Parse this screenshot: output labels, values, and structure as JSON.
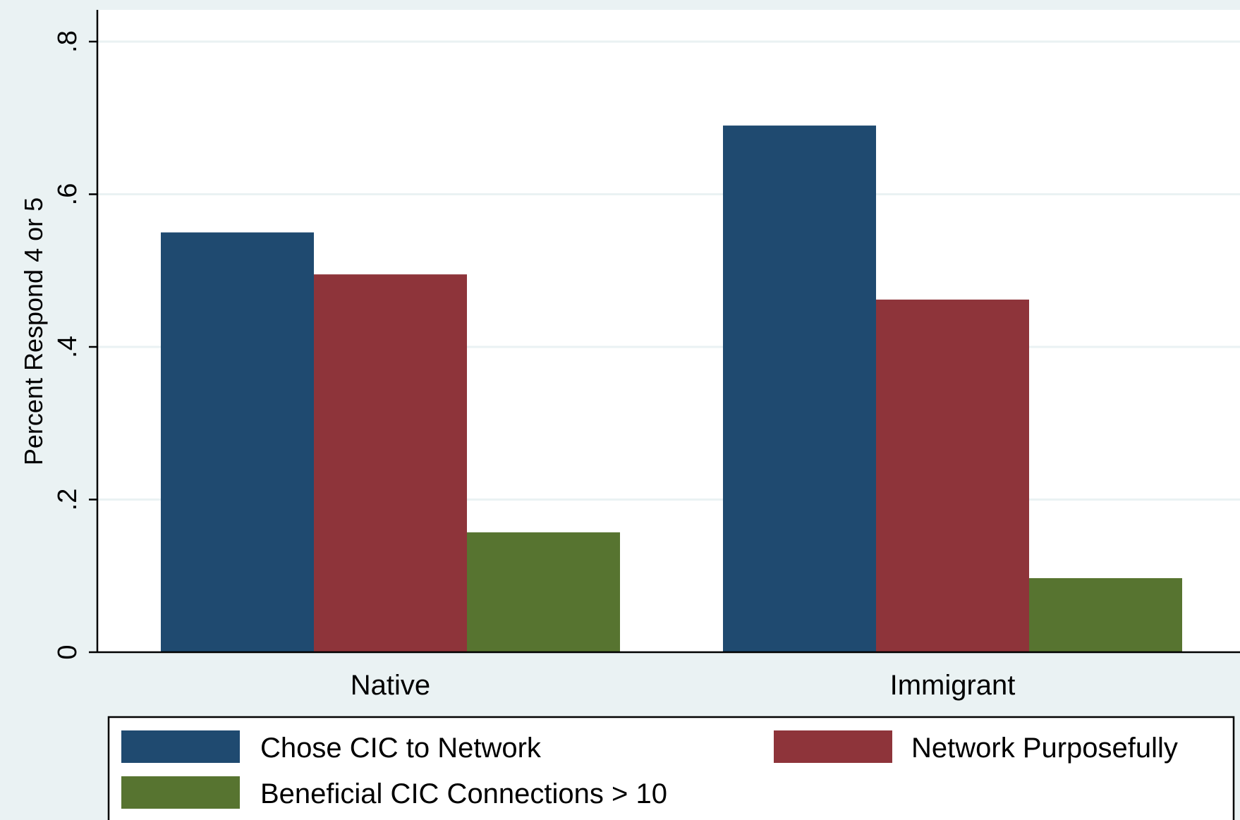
{
  "chart_data": {
    "type": "bar",
    "title": "",
    "xlabel": "",
    "ylabel": "Percent Respond 4 or 5",
    "categories": [
      "Native",
      "Immigrant"
    ],
    "series": [
      {
        "name": "Chose CIC to Network",
        "values": [
          0.55,
          0.69
        ],
        "color": "#1f4a70"
      },
      {
        "name": "Network Purposefully",
        "values": [
          0.495,
          0.462
        ],
        "color": "#8e343a"
      },
      {
        "name": "Beneficial CIC Connections > 10",
        "values": [
          0.157,
          0.097
        ],
        "color": "#577430"
      }
    ],
    "ylim": [
      0,
      0.8
    ],
    "yticks": [
      0,
      0.2,
      0.4,
      0.6,
      0.8
    ],
    "ytick_labels": [
      "0",
      ".2",
      ".4",
      ".6",
      ".8"
    ],
    "grid": true,
    "legend": "bottom"
  },
  "colors": {
    "background": "#eaf2f3",
    "plot_background": "#ffffff",
    "gridline": "#eaf2f3",
    "axis": "#000000"
  }
}
